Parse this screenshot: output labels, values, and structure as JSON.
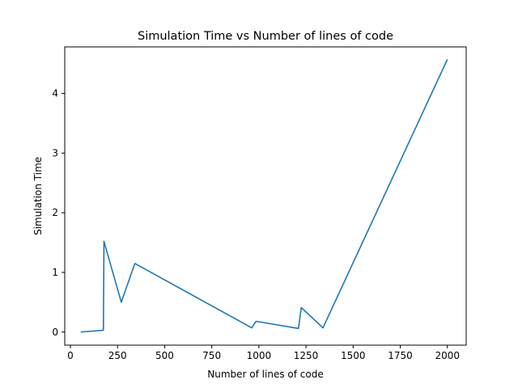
{
  "chart_data": {
    "type": "line",
    "title": "Simulation Time vs Number of lines of code",
    "xlabel": "Number of lines of code",
    "ylabel": "Simulation Time",
    "xlim": [
      -30,
      2100
    ],
    "ylim": [
      -0.22,
      4.78
    ],
    "xticks": [
      0,
      250,
      500,
      750,
      1000,
      1250,
      1500,
      1750,
      2000
    ],
    "yticks": [
      0,
      1,
      2,
      3,
      4
    ],
    "grid": false,
    "color": "#1f77b4",
    "series": [
      {
        "x": [
          55,
          175,
          178,
          270,
          342,
          962,
          985,
          1210,
          1225,
          1340,
          2000
        ],
        "y": [
          0.0,
          0.03,
          1.52,
          0.5,
          1.15,
          0.07,
          0.18,
          0.06,
          0.41,
          0.07,
          4.57
        ]
      }
    ]
  }
}
